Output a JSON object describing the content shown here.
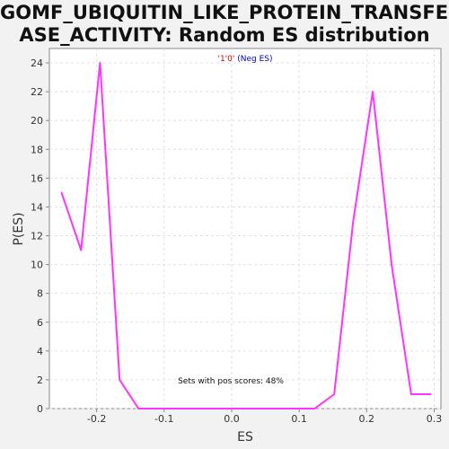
{
  "title": {
    "line1": "GOMF_UBIQUITIN_LIKE_PROTEIN_TRANSFER",
    "line2": "ASE_ACTIVITY: Random ES distribution"
  },
  "colors": {
    "line": "#ff33ff",
    "legend_quote": "#cc0000",
    "legend_text": "#0000cc",
    "axes": "#888888",
    "grid": "#e0e0e0",
    "plot_bg": "#ffffff"
  },
  "chart_data": {
    "type": "line",
    "title": "GOMF_UBIQUITIN_LIKE_PROTEIN_TRANSFERASE_ACTIVITY: Random ES distribution",
    "xlabel": "ES",
    "ylabel": "P(ES)",
    "xlim": [
      -0.27,
      0.31
    ],
    "ylim": [
      0,
      25
    ],
    "x_ticks": [
      -0.2,
      -0.1,
      0.0,
      0.1,
      0.2,
      0.3
    ],
    "x_tick_labels": [
      "-0.2",
      "-0.1",
      "0.0",
      "0.1",
      "0.2",
      "0.3"
    ],
    "y_ticks": [
      0,
      2,
      4,
      6,
      8,
      10,
      12,
      14,
      16,
      18,
      20,
      22,
      24
    ],
    "y_tick_labels": [
      "0",
      "2",
      "4",
      "6",
      "8",
      "10",
      "12",
      "14",
      "16",
      "18",
      "20",
      "22",
      "24"
    ],
    "grid": true,
    "legend": {
      "quote_part": "'1'0'",
      "text_part": " (Neg ES)",
      "placement": "top-center"
    },
    "annotation": "Sets with pos scores: 48%",
    "series": [
      {
        "name": "'1'0' (Neg ES)",
        "x": [
          -0.252,
          -0.223,
          -0.195,
          -0.166,
          -0.138,
          0.123,
          0.152,
          0.18,
          0.209,
          0.237,
          0.266,
          0.295
        ],
        "y": [
          15,
          11,
          24,
          2,
          0,
          0,
          1,
          13,
          22,
          10,
          1,
          1
        ]
      }
    ]
  }
}
